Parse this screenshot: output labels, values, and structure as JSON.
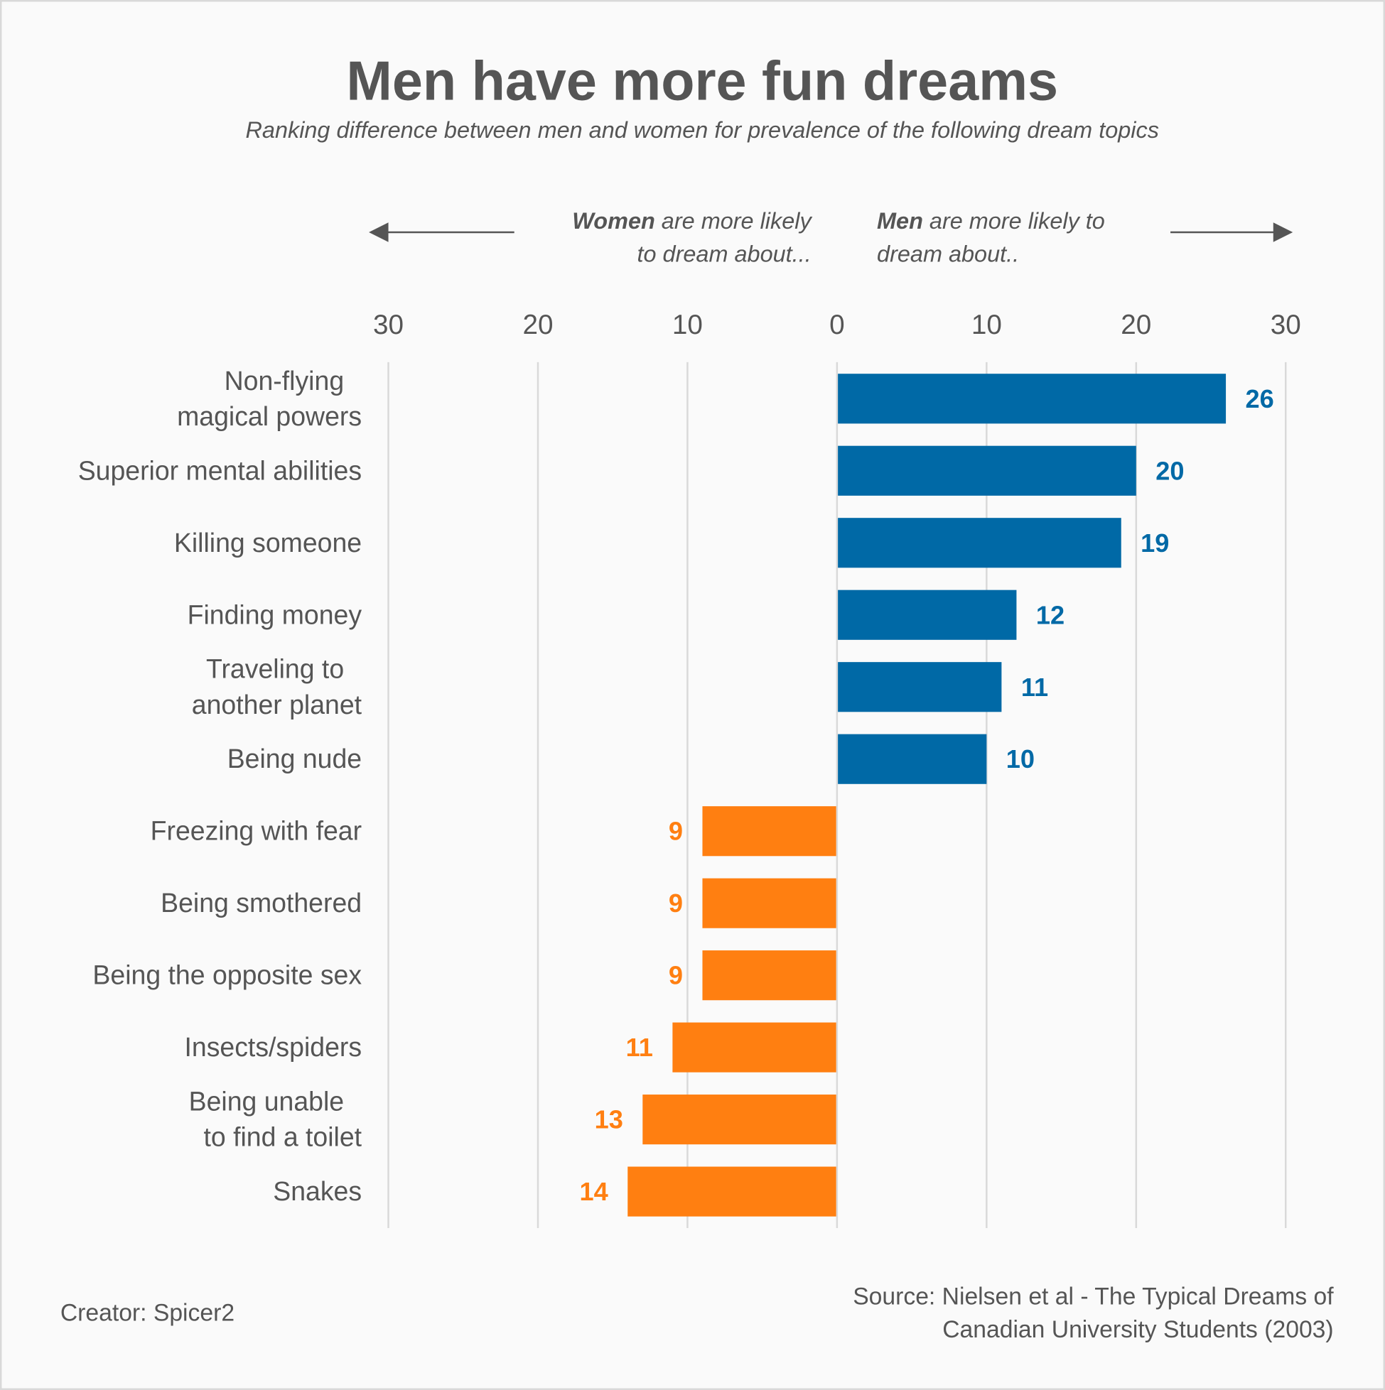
{
  "title": "Men have more fun dreams",
  "subtitle": "Ranking difference between men and women for prevalence of the following dream topics",
  "annotations": {
    "women_bold": "Women",
    "women_rest1": " are more likely",
    "women_line2": "to dream about...",
    "men_bold": "Men",
    "men_rest1": " are more likely to",
    "men_line2": "dream about.."
  },
  "footer": {
    "creator": "Creator: Spicer2",
    "source_line1": "Source: Nielsen et al - The Typical Dreams of",
    "source_line2": "Canadian University Students (2003)"
  },
  "colors": {
    "men": "#0069a6",
    "women": "#ff7f11",
    "text": "#555555",
    "grid": "#d9d9d9"
  },
  "chart_data": {
    "type": "bar",
    "orientation": "horizontal-diverging",
    "title": "Men have more fun dreams",
    "xlim": [
      -30,
      30
    ],
    "ticks": [
      -30,
      -20,
      -10,
      0,
      10,
      20,
      30
    ],
    "tick_labels": [
      "30",
      "20",
      "10",
      "0",
      "10",
      "20",
      "30"
    ],
    "grid": true,
    "categories": [
      [
        "Non-flying",
        "magical powers"
      ],
      [
        "Superior mental abilities"
      ],
      [
        "Killing someone"
      ],
      [
        "Finding money"
      ],
      [
        "Traveling to",
        "another planet"
      ],
      [
        "Being nude"
      ],
      [
        "Freezing with fear"
      ],
      [
        "Being smothered"
      ],
      [
        "Being the opposite sex"
      ],
      [
        "Insects/spiders"
      ],
      [
        "Being unable",
        "to find a toilet"
      ],
      [
        "Snakes"
      ]
    ],
    "values": [
      26,
      20,
      19,
      12,
      11,
      10,
      -9,
      -9,
      -9,
      -11,
      -13,
      -14
    ],
    "value_labels": [
      "26",
      "20",
      "19",
      "12",
      "11",
      "10",
      "9",
      "9",
      "9",
      "11",
      "13",
      "14"
    ],
    "series_names": {
      "positive": "Men",
      "negative": "Women"
    }
  }
}
